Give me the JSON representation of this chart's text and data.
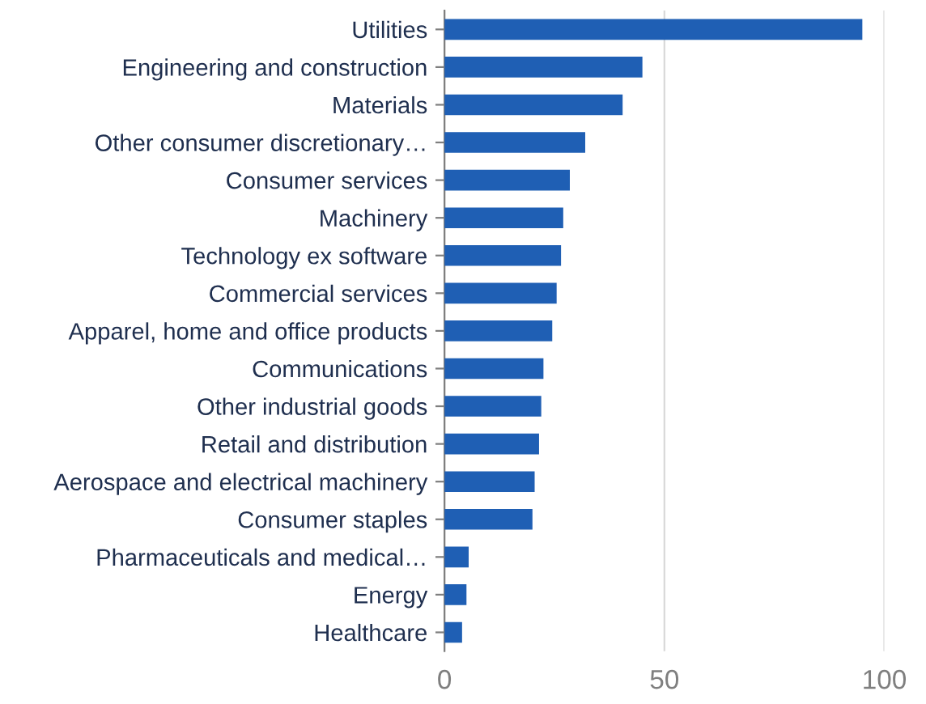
{
  "chart_data": {
    "type": "bar",
    "orientation": "horizontal",
    "categories": [
      "Utilities",
      "Engineering and construction",
      "Materials",
      "Other consumer discretionary…",
      "Consumer services",
      "Machinery",
      "Technology ex software",
      "Commercial services",
      "Apparel, home and office products",
      "Communications",
      "Other industrial goods",
      "Retail and distribution",
      "Aerospace and electrical machinery",
      "Consumer staples",
      "Pharmaceuticals and medical…",
      "Energy",
      "Healthcare"
    ],
    "values": [
      95,
      45,
      40.5,
      32,
      28.5,
      27,
      26.5,
      25.5,
      24.5,
      22.5,
      22,
      21.5,
      20.5,
      20,
      5.5,
      5,
      4
    ],
    "color": "#1f5fb4",
    "xlim": [
      0,
      100
    ],
    "xticks": [
      0,
      50,
      100
    ],
    "grid": "x"
  }
}
